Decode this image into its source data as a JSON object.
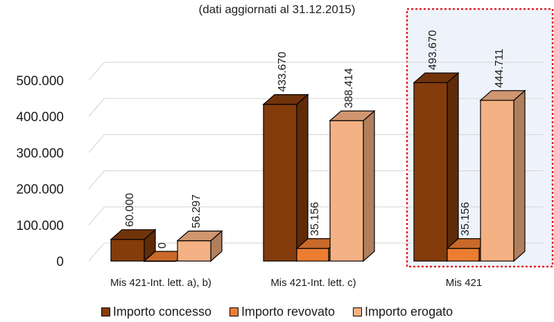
{
  "chart_data": {
    "type": "bar",
    "subtitle": "(dati aggiornati al 31.12.2015)",
    "categories": [
      "Mis 421-Int. lett. a), b)",
      "Mis 421-Int. lett. c)",
      "Mis 421"
    ],
    "series": [
      {
        "name": "Importo concesso",
        "values": [
          60000,
          433670,
          493670
        ],
        "labels": [
          "60.000",
          "433.670",
          "493.670"
        ],
        "color": "#843C0C"
      },
      {
        "name": "Importo revovato",
        "values": [
          0,
          35156,
          35156
        ],
        "labels": [
          "0",
          "35.156",
          "35.156"
        ],
        "color": "#ED7D31"
      },
      {
        "name": "Importo erogato",
        "values": [
          56297,
          388414,
          444711
        ],
        "labels": [
          "56.297",
          "388.414",
          "444.711"
        ],
        "color": "#F4B183"
      }
    ],
    "y_ticks": [
      0,
      100000,
      200000,
      300000,
      400000,
      500000
    ],
    "y_tick_labels": [
      "0",
      "100.000",
      "200.000",
      "300.000",
      "400.000",
      "500.000"
    ],
    "ylim": [
      0,
      500000
    ],
    "grid": true,
    "legend_position": "bottom",
    "highlight_category": "Mis 421",
    "highlight_color": "#EEF3FB",
    "highlight_border_color": "#E31B23"
  }
}
